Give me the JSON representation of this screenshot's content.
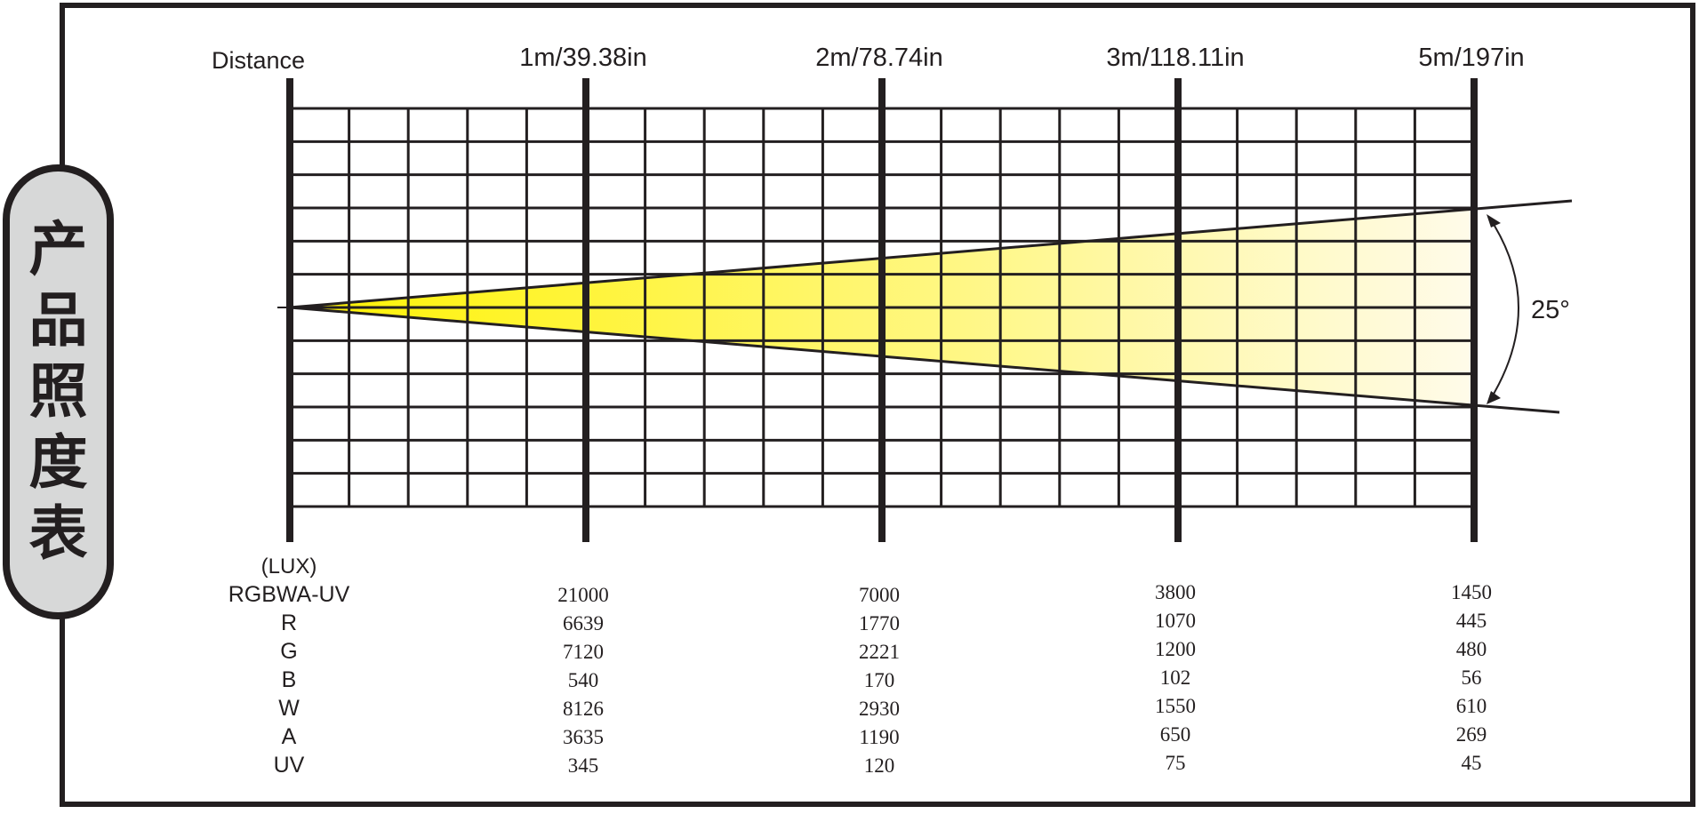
{
  "side_title": [
    "产",
    "品",
    "照",
    "度",
    "表"
  ],
  "colors": {
    "beam_start": "#fff200",
    "beam_end": "#fffbea",
    "line": "#231f20",
    "tab_fill": "#d7d8d8"
  },
  "chart_data": {
    "type": "table",
    "distance_label": "Distance",
    "distances": [
      "1m/39.38in",
      "2m/78.74in",
      "3m/118.11in",
      "5m/197in"
    ],
    "beam_angle_label": "25°",
    "unit_label": "(LUX)",
    "rows": [
      {
        "label": "RGBWA-UV",
        "values": [
          "21000",
          "7000",
          "3800",
          "1450"
        ]
      },
      {
        "label": "R",
        "values": [
          "6639",
          "1770",
          "1070",
          "445"
        ]
      },
      {
        "label": "G",
        "values": [
          "7120",
          "2221",
          "1200",
          "480"
        ]
      },
      {
        "label": "B",
        "values": [
          "540",
          "170",
          "102",
          "56"
        ]
      },
      {
        "label": "W",
        "values": [
          "8126",
          "2930",
          "1550",
          "610"
        ]
      },
      {
        "label": "A",
        "values": [
          "3635",
          "1190",
          "650",
          "269"
        ]
      },
      {
        "label": "UV",
        "values": [
          "345",
          "120",
          "75",
          "45"
        ]
      }
    ]
  }
}
